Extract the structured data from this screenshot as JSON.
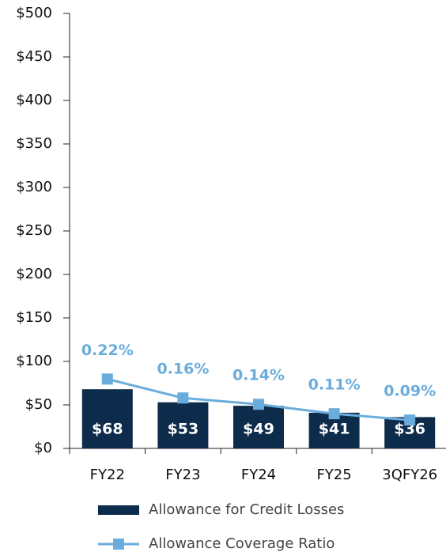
{
  "chart_data": {
    "type": "bar_line",
    "categories": [
      "FY22",
      "FY23",
      "FY24",
      "FY25",
      "3QFY26"
    ],
    "series": [
      {
        "name": "Allowance for Credit Losses",
        "type": "bar",
        "color": "#0d2b4a",
        "values": [
          68,
          53,
          49,
          41,
          36
        ],
        "value_labels": [
          "$68",
          "$53",
          "$49",
          "$41",
          "$36"
        ]
      },
      {
        "name": "Allowance Coverage Ratio",
        "type": "line",
        "axis": "y2",
        "color": "#6aaddc",
        "values": [
          0.22,
          0.16,
          0.14,
          0.11,
          0.09
        ],
        "value_labels": [
          "0.22%",
          "0.16%",
          "0.14%",
          "0.11%",
          "0.09%"
        ]
      }
    ],
    "ylim": [
      0,
      500
    ],
    "yticks": [
      {
        "value": 0,
        "label": "$0"
      },
      {
        "value": 50,
        "label": "$50"
      },
      {
        "value": 100,
        "label": "$100"
      },
      {
        "value": 150,
        "label": "$150"
      },
      {
        "value": 200,
        "label": "$200"
      },
      {
        "value": 250,
        "label": "$250"
      },
      {
        "value": 300,
        "label": "$300"
      },
      {
        "value": 350,
        "label": "$350"
      },
      {
        "value": 400,
        "label": "$400"
      },
      {
        "value": 450,
        "label": "$450"
      },
      {
        "value": 500,
        "label": "$500"
      }
    ],
    "y2lim": [
      0,
      1.38
    ],
    "legend": "bottom"
  }
}
